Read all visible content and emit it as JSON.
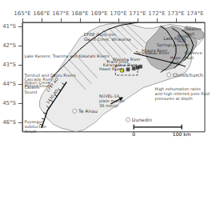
{
  "chart_data": {
    "type": "map",
    "xlim": [
      165.0,
      174.5
    ],
    "ylim": [
      -46.5,
      -40.8
    ],
    "xticks": [
      {
        "value": 165,
        "label": "165°E"
      },
      {
        "value": 166,
        "label": "166°E"
      },
      {
        "value": 167,
        "label": "167°E"
      },
      {
        "value": 168,
        "label": "168°E"
      },
      {
        "value": 169,
        "label": "169°E"
      },
      {
        "value": 170,
        "label": "170°E"
      },
      {
        "value": 171,
        "label": "171°E"
      },
      {
        "value": 172,
        "label": "172°E"
      },
      {
        "value": 173,
        "label": "173°E"
      },
      {
        "value": 174,
        "label": "174°E"
      }
    ],
    "yticks": [
      {
        "value": -41,
        "label": "41°S"
      },
      {
        "value": -42,
        "label": "42°S"
      },
      {
        "value": -43,
        "label": "43°S"
      },
      {
        "value": -44,
        "label": "44°S"
      },
      {
        "value": -45,
        "label": "45°S"
      },
      {
        "value": -46,
        "label": "46°S"
      }
    ],
    "grid": false,
    "series": [
      {
        "type": "polygon",
        "color": "#e8e8e8",
        "values": [
          [
            172.7,
            -40.9
          ],
          [
            173.3,
            -41.0
          ],
          [
            173.9,
            -41.2
          ],
          [
            174.3,
            -41.3
          ],
          [
            174.5,
            -41.5
          ],
          [
            174.3,
            -41.8
          ],
          [
            174.1,
            -42.0
          ],
          [
            173.9,
            -42.2
          ],
          [
            173.8,
            -42.5
          ],
          [
            173.8,
            -42.8
          ],
          [
            173.7,
            -43.1
          ],
          [
            173.5,
            -43.4
          ],
          [
            173.2,
            -43.6
          ],
          [
            172.8,
            -43.7
          ],
          [
            172.5,
            -43.8
          ],
          [
            172.2,
            -43.9
          ],
          [
            171.9,
            -44.0
          ],
          [
            171.6,
            -44.1
          ],
          [
            171.3,
            -44.2
          ],
          [
            171.0,
            -44.4
          ],
          [
            170.7,
            -44.6
          ],
          [
            170.4,
            -44.8
          ],
          [
            170.1,
            -45.0
          ],
          [
            169.8,
            -45.2
          ],
          [
            169.5,
            -45.4
          ],
          [
            169.2,
            -45.6
          ],
          [
            169.0,
            -45.8
          ],
          [
            168.8,
            -46.0
          ],
          [
            168.5,
            -46.2
          ],
          [
            168.2,
            -46.4
          ],
          [
            167.8,
            -46.5
          ],
          [
            167.4,
            -46.4
          ],
          [
            167.0,
            -46.3
          ],
          [
            166.6,
            -46.1
          ],
          [
            166.3,
            -45.8
          ],
          [
            166.1,
            -45.5
          ],
          [
            165.9,
            -45.2
          ],
          [
            165.9,
            -44.9
          ],
          [
            166.0,
            -44.6
          ],
          [
            166.2,
            -44.3
          ],
          [
            166.4,
            -44.0
          ],
          [
            166.6,
            -43.7
          ],
          [
            166.8,
            -43.4
          ],
          [
            167.0,
            -43.1
          ],
          [
            167.2,
            -42.8
          ],
          [
            167.4,
            -42.5
          ],
          [
            167.6,
            -42.2
          ],
          [
            167.8,
            -41.9
          ],
          [
            168.0,
            -41.6
          ],
          [
            168.3,
            -41.4
          ],
          [
            168.6,
            -41.2
          ],
          [
            169.0,
            -41.0
          ],
          [
            169.4,
            -40.9
          ],
          [
            169.8,
            -40.85
          ],
          [
            170.2,
            -40.85
          ],
          [
            170.6,
            -40.9
          ],
          [
            171.0,
            -41.0
          ],
          [
            171.4,
            -41.1
          ],
          [
            171.8,
            -41.1
          ],
          [
            172.2,
            -41.0
          ],
          [
            172.7,
            -40.9
          ]
        ]
      },
      {
        "type": "polygon",
        "color": "#aaaaaa",
        "values": [
          [
            172.2,
            -41.0
          ],
          [
            172.5,
            -41.1
          ],
          [
            172.8,
            -41.0
          ],
          [
            173.2,
            -41.1
          ],
          [
            173.6,
            -41.3
          ],
          [
            173.9,
            -41.5
          ],
          [
            174.1,
            -41.8
          ],
          [
            174.0,
            -42.1
          ],
          [
            173.8,
            -42.4
          ],
          [
            173.5,
            -42.7
          ],
          [
            173.2,
            -43.0
          ],
          [
            172.8,
            -43.2
          ],
          [
            172.4,
            -43.3
          ],
          [
            172.0,
            -43.2
          ],
          [
            171.7,
            -43.0
          ],
          [
            171.5,
            -42.7
          ],
          [
            171.4,
            -42.4
          ],
          [
            171.4,
            -42.1
          ],
          [
            171.5,
            -41.8
          ],
          [
            171.8,
            -41.5
          ],
          [
            172.0,
            -41.3
          ],
          [
            172.2,
            -41.0
          ]
        ]
      },
      {
        "type": "polygon",
        "color": "#aaaaaa",
        "values": [
          [
            173.5,
            -41.0
          ],
          [
            173.8,
            -41.05
          ],
          [
            174.1,
            -41.1
          ],
          [
            174.3,
            -41.2
          ],
          [
            174.5,
            -41.4
          ],
          [
            174.4,
            -41.6
          ],
          [
            174.2,
            -41.7
          ],
          [
            173.9,
            -41.6
          ],
          [
            173.6,
            -41.4
          ],
          [
            173.4,
            -41.2
          ],
          [
            173.5,
            -41.0
          ]
        ]
      },
      {
        "type": "lines",
        "color": "#777777",
        "line_style": "solid",
        "segments": [
          [
            [
              168.3,
              -41.55
            ],
            [
              169.5,
              -42.9
            ]
          ],
          [
            [
              168.6,
              -41.4
            ],
            [
              169.8,
              -42.75
            ]
          ],
          [
            [
              168.9,
              -41.3
            ],
            [
              170.1,
              -42.6
            ]
          ],
          [
            [
              169.2,
              -41.2
            ],
            [
              170.4,
              -42.45
            ]
          ],
          [
            [
              169.5,
              -41.1
            ],
            [
              170.7,
              -42.3
            ]
          ],
          [
            [
              169.8,
              -41.05
            ],
            [
              171.0,
              -42.2
            ]
          ],
          [
            [
              170.1,
              -40.95
            ],
            [
              171.3,
              -42.1
            ]
          ],
          [
            [
              170.4,
              -40.9
            ],
            [
              171.5,
              -41.95
            ]
          ],
          [
            [
              167.7,
              -42.4
            ],
            [
              168.9,
              -43.7
            ]
          ],
          [
            [
              167.4,
              -42.7
            ],
            [
              168.6,
              -44.0
            ]
          ],
          [
            [
              167.1,
              -43.0
            ],
            [
              168.3,
              -44.3
            ]
          ]
        ]
      },
      {
        "type": "line",
        "color": "#000000",
        "line_style": "solid",
        "values": [
          [
            166.5,
            -43.7
          ],
          [
            166.8,
            -43.4
          ],
          [
            167.1,
            -43.1
          ],
          [
            167.4,
            -42.8
          ],
          [
            167.7,
            -42.5
          ],
          [
            168.0,
            -42.2
          ],
          [
            168.3,
            -41.95
          ],
          [
            168.6,
            -41.7
          ],
          [
            168.9,
            -41.5
          ],
          [
            169.2,
            -41.3
          ],
          [
            169.5,
            -41.15
          ],
          [
            169.8,
            -41.05
          ],
          [
            170.1,
            -40.95
          ],
          [
            170.4,
            -40.9
          ],
          [
            170.7,
            -40.85
          ],
          [
            171.0,
            -40.8
          ]
        ]
      },
      {
        "type": "line",
        "color": "#000000",
        "line_style": "solid",
        "values": [
          [
            172.2,
            -41.0
          ],
          [
            172.5,
            -41.2
          ],
          [
            172.7,
            -41.5
          ],
          [
            172.9,
            -41.8
          ],
          [
            173.0,
            -42.1
          ],
          [
            173.0,
            -42.4
          ],
          [
            172.9,
            -42.7
          ],
          [
            172.7,
            -43.0
          ],
          [
            172.5,
            -43.2
          ],
          [
            172.2,
            -43.4
          ]
        ]
      },
      {
        "type": "line",
        "color": "#000000",
        "line_style": "solid",
        "values": [
          [
            172.8,
            -41.1
          ],
          [
            173.1,
            -41.3
          ],
          [
            173.3,
            -41.6
          ],
          [
            173.5,
            -41.9
          ],
          [
            173.6,
            -42.2
          ],
          [
            173.5,
            -42.5
          ],
          [
            173.3,
            -42.8
          ],
          [
            173.1,
            -43.0
          ],
          [
            172.9,
            -43.2
          ]
        ]
      },
      {
        "type": "line",
        "color": "#000000",
        "line_style": "solid",
        "values": [
          [
            173.3,
            -41.2
          ],
          [
            173.6,
            -41.4
          ],
          [
            173.8,
            -41.7
          ],
          [
            173.9,
            -42.0
          ],
          [
            173.8,
            -42.3
          ],
          [
            173.6,
            -42.6
          ],
          [
            173.4,
            -42.8
          ]
        ]
      },
      {
        "type": "line",
        "color": "#000000",
        "line_style": "solid",
        "values": [
          [
            170.8,
            -42.4
          ],
          [
            171.2,
            -42.5
          ],
          [
            171.6,
            -42.6
          ],
          [
            172.0,
            -42.7
          ],
          [
            172.4,
            -42.8
          ],
          [
            172.8,
            -42.9
          ],
          [
            173.2,
            -43.0
          ],
          [
            173.5,
            -43.1
          ]
        ]
      },
      {
        "type": "thrust",
        "color": "#000000",
        "values": [
          [
            166.0,
            -46.3
          ],
          [
            166.1,
            -46.0
          ],
          [
            166.2,
            -45.7
          ],
          [
            166.3,
            -45.4
          ],
          [
            166.5,
            -45.1
          ],
          [
            166.7,
            -44.8
          ],
          [
            166.9,
            -44.5
          ],
          [
            167.1,
            -44.2
          ],
          [
            167.3,
            -43.9
          ]
        ]
      },
      {
        "type": "line",
        "color": "#333333",
        "line_style": "dashed",
        "values": [
          [
            169.85,
            -43.05
          ],
          [
            171.0,
            -43.05
          ],
          [
            171.0,
            -43.55
          ],
          [
            169.85,
            -43.55
          ],
          [
            169.85,
            -43.05
          ]
        ]
      },
      {
        "type": "arrow",
        "color": "#000000",
        "values": [
          [
            169.6,
            -45.05
          ],
          [
            170.25,
            -44.7
          ]
        ]
      },
      {
        "type": "scatter",
        "marker": "square",
        "color": "#222222",
        "values": [
          [
            170.2,
            -43.3
          ],
          [
            170.5,
            -43.25
          ],
          [
            170.8,
            -43.2
          ],
          [
            171.0,
            -43.15
          ],
          [
            171.15,
            -43.1
          ]
        ]
      },
      {
        "type": "scatter",
        "marker": "square",
        "color": "yellow",
        "values": [
          [
            170.18,
            -43.3
          ]
        ]
      },
      {
        "type": "scatter",
        "marker": "circle",
        "color": "#ffffff",
        "values": [
          [
            172.63,
            -43.53
          ],
          [
            170.5,
            -45.87
          ],
          [
            167.72,
            -45.42
          ]
        ],
        "labels": [
          "Christchurch",
          "Dunedin",
          "Te Anau"
        ]
      },
      {
        "type": "text",
        "values": [
          [
            166.55,
            -44.05
          ],
          [
            166.55,
            -44.65
          ]
        ],
        "labels": [
          "1717 AD",
          "1430 AD"
        ]
      },
      {
        "type": "scalebar",
        "color": "#000000",
        "values": [
          [
            170.8,
            -46.25
          ],
          [
            173.3,
            -46.25
          ]
        ],
        "labels": [
          "0",
          "100 km"
        ]
      }
    ],
    "annotations": [
      {
        "text": "DFDP study site,\nGaunt Creek, Whataroa",
        "x": 168.2,
        "y": -41.55
      },
      {
        "text": "Springs Junction",
        "x": 172.0,
        "y": -41.95
      },
      {
        "text": "Lake Rototi",
        "x": 172.35,
        "y": -41.65
      },
      {
        "text": "Ahaura River",
        "x": 171.2,
        "y": -42.25
      },
      {
        "text": "Taramakau River",
        "x": 170.9,
        "y": -42.4
      },
      {
        "text": "Lake Kaniere; Toaroha and Kokatahi Rivers",
        "x": 165.1,
        "y": -42.55
      },
      {
        "text": "Waitaha River",
        "x": 169.7,
        "y": -42.7
      },
      {
        "text": "Franz Josef",
        "x": 169.4,
        "y": -42.85
      },
      {
        "text": "Karanganui River",
        "x": 169.2,
        "y": -43.0
      },
      {
        "text": "Haast River",
        "x": 169.0,
        "y": -43.2
      },
      {
        "text": "Turnbull and Okuru Rivers",
        "x": 165.1,
        "y": -43.55
      },
      {
        "text": "Cascade River",
        "x": 165.1,
        "y": -43.75
      },
      {
        "text": "Hokuri Creek",
        "x": 165.1,
        "y": -43.93
      },
      {
        "text": "Milford Sound",
        "x": 165.1,
        "y": -44.1
      },
      {
        "text": "Caswell\nSound",
        "x": 165.1,
        "y": -44.3
      },
      {
        "text": "Hope\nfault",
        "x": 172.7,
        "y": -42.75
      },
      {
        "text": "Clarence\nfault",
        "x": 173.45,
        "y": -42.5
      },
      {
        "text": "Awatere\nfault",
        "x": 173.5,
        "y": -41.25
      },
      {
        "text": "Wairau\nfault",
        "x": 173.05,
        "y": -41.65
      },
      {
        "text": "NUVEL-1A\nplate motion\n36 mm/yr",
        "x": 169.0,
        "y": -44.9
      },
      {
        "text": "High exhumation rates\nand high inferred pore fluid\npressures at depth",
        "x": 171.9,
        "y": -44.5
      },
      {
        "text": "Puysegur\nsubduction\nthrust",
        "x": 165.1,
        "y": -46.2
      }
    ]
  }
}
